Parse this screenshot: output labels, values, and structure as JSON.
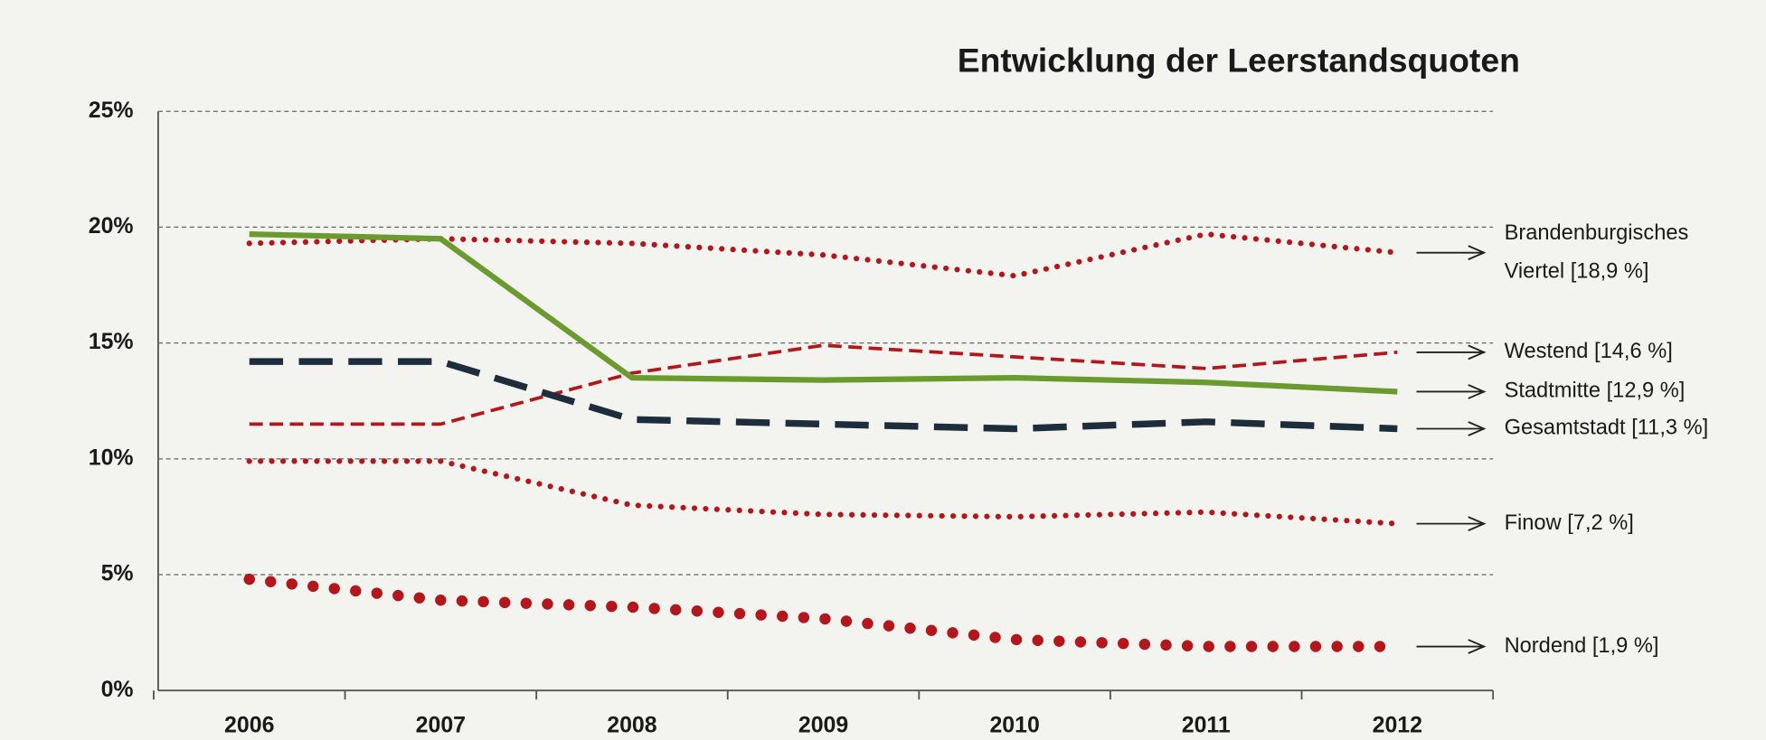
{
  "chart_data": {
    "type": "line",
    "title": "Entwicklung der Leerstandsquoten",
    "categories": [
      "2006",
      "2007",
      "2008",
      "2009",
      "2010",
      "2011",
      "2012"
    ],
    "ylim": [
      0,
      25
    ],
    "yticks": [
      {
        "value": 0,
        "label": "0%"
      },
      {
        "value": 5,
        "label": "5%"
      },
      {
        "value": 10,
        "label": "10%"
      },
      {
        "value": 15,
        "label": "15%"
      },
      {
        "value": 20,
        "label": "20%"
      },
      {
        "value": 25,
        "label": "25%"
      }
    ],
    "grid": true,
    "series": [
      {
        "name": "Brandenburgisches Viertel [18,9 %]",
        "color": "#b3161b",
        "style": "dotted",
        "values": [
          19.3,
          19.5,
          19.3,
          18.8,
          17.9,
          19.7,
          18.9
        ]
      },
      {
        "name": "Westend [14,6 %]",
        "color": "#b3161b",
        "style": "dashed",
        "values": [
          11.5,
          11.5,
          13.7,
          14.9,
          14.4,
          13.9,
          14.6
        ]
      },
      {
        "name": "Stadtmitte [12,9 %]",
        "color": "#6b9a2f",
        "style": "solid",
        "values": [
          19.7,
          19.5,
          13.5,
          13.4,
          13.5,
          13.3,
          12.9
        ]
      },
      {
        "name": "Gesamtstadt [11,3 %]",
        "color": "#1e2d3b",
        "style": "longdash",
        "values": [
          14.2,
          14.2,
          11.7,
          11.5,
          11.3,
          11.6,
          11.3
        ]
      },
      {
        "name": "Finow [7,2 %]",
        "color": "#b3161b",
        "style": "dotted",
        "values": [
          9.9,
          9.9,
          8.0,
          7.6,
          7.5,
          7.7,
          7.2
        ]
      },
      {
        "name": "Nordend [1,9 %]",
        "color": "#b3161b",
        "style": "bigdots",
        "values": [
          4.8,
          3.9,
          3.6,
          3.1,
          2.2,
          1.9,
          1.9
        ]
      }
    ]
  }
}
